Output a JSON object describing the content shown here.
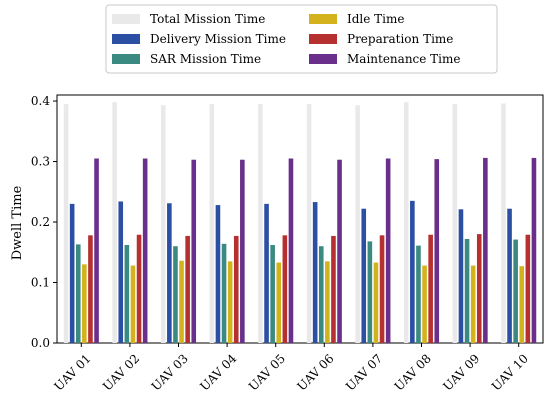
{
  "chart_data": {
    "type": "bar",
    "title": "",
    "xlabel": "",
    "ylabel": "Dwell Time",
    "ylim": [
      0,
      0.41
    ],
    "yticks": [
      "0.0",
      "0.1",
      "0.2",
      "0.3",
      "0.4"
    ],
    "grid": false,
    "legend_position": "top-center",
    "categories": [
      "UAV 01",
      "UAV 02",
      "UAV 03",
      "UAV 04",
      "UAV 05",
      "UAV 06",
      "UAV 07",
      "UAV 08",
      "UAV 09",
      "UAV 10"
    ],
    "series": [
      {
        "name": "Total Mission Time",
        "color": "#e9e9e9",
        "values": [
          0.395,
          0.398,
          0.393,
          0.395,
          0.395,
          0.395,
          0.393,
          0.398,
          0.395,
          0.396
        ]
      },
      {
        "name": "Delivery Mission Time",
        "color": "#2b4fa3",
        "values": [
          0.23,
          0.234,
          0.231,
          0.228,
          0.23,
          0.233,
          0.222,
          0.235,
          0.221,
          0.222
        ]
      },
      {
        "name": "SAR Mission Time",
        "color": "#3a8a82",
        "values": [
          0.163,
          0.162,
          0.16,
          0.164,
          0.162,
          0.16,
          0.168,
          0.161,
          0.172,
          0.171
        ]
      },
      {
        "name": "Idle Time",
        "color": "#d4b21e",
        "values": [
          0.13,
          0.128,
          0.136,
          0.135,
          0.133,
          0.135,
          0.133,
          0.128,
          0.128,
          0.127
        ]
      },
      {
        "name": "Preparation Time",
        "color": "#b5302f",
        "values": [
          0.178,
          0.179,
          0.177,
          0.177,
          0.178,
          0.177,
          0.178,
          0.179,
          0.18,
          0.179
        ]
      },
      {
        "name": "Maintenance Time",
        "color": "#6a2f8a",
        "values": [
          0.305,
          0.305,
          0.303,
          0.303,
          0.305,
          0.303,
          0.305,
          0.304,
          0.306,
          0.306
        ]
      }
    ]
  }
}
